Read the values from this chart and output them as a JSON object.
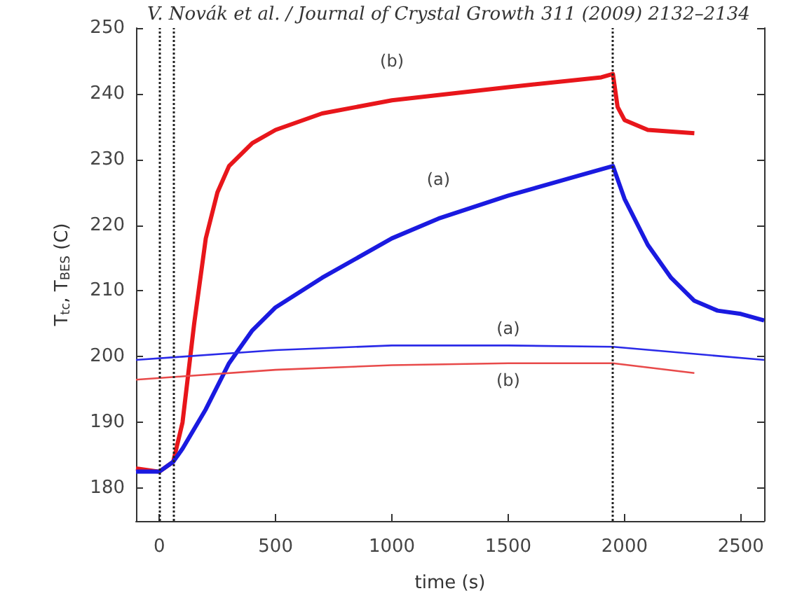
{
  "chart_data": {
    "type": "line",
    "xlabel": "time (s)",
    "ylabel": "T$_{tc}$, T$_{BES}$ (C)",
    "annotations": [
      "V. Novák et al. / Journal of Crystal Growth 311 (2009) 2132–2134"
    ],
    "series": [
      {
        "name": "(b)",
        "color": "#e8161b",
        "x": [
          -100,
          0,
          60,
          100,
          150,
          200,
          250,
          300,
          400,
          500,
          700,
          1000,
          1500,
          1900,
          1950,
          1970,
          2000,
          2100,
          2300
        ],
        "values": [
          183,
          182.5,
          184,
          190,
          205,
          218,
          225,
          229,
          232.5,
          234.5,
          237,
          239,
          241,
          242.5,
          243,
          238,
          236,
          234.5,
          234
        ]
      },
      {
        "name": "(a)",
        "color": "#1a1ae0",
        "x": [
          -100,
          0,
          60,
          100,
          200,
          300,
          400,
          500,
          700,
          1000,
          1200,
          1500,
          1800,
          1950,
          2000,
          2100,
          2200,
          2300,
          2400,
          2500,
          2600
        ],
        "values": [
          182.5,
          182.5,
          184,
          186,
          192,
          199,
          204,
          207.5,
          212,
          218,
          221,
          224.5,
          227.5,
          229,
          224,
          217,
          212,
          208.5,
          207,
          206.5,
          205.5
        ]
      },
      {
        "name": "(a)",
        "color": "#2a2ae8",
        "x": [
          -100,
          100,
          500,
          1000,
          1500,
          1950,
          2600
        ],
        "values": [
          199.5,
          200,
          201,
          201.7,
          201.7,
          201.5,
          199.5
        ]
      },
      {
        "name": "(b)",
        "color": "#e84a4a",
        "x": [
          -100,
          100,
          500,
          1000,
          1500,
          1950,
          2300
        ],
        "values": [
          196.5,
          197,
          198,
          198.7,
          199,
          199,
          197.5
        ]
      }
    ],
    "xlim": [
      -100,
      2600
    ],
    "xticks": [
      0,
      500,
      1000,
      1500,
      2000,
      2500
    ],
    "ylim": [
      175,
      250
    ],
    "yticks": [
      180,
      190,
      200,
      210,
      220,
      230,
      240,
      250
    ],
    "ref_lines": [
      {
        "axis": "x",
        "value": 0,
        "line_style": "dotted"
      },
      {
        "axis": "x",
        "value": 60,
        "line_style": "dotted"
      },
      {
        "axis": "x",
        "value": 1950,
        "line_style": "dotted"
      }
    ],
    "grid": false,
    "marker": "none",
    "line_style": "solid"
  }
}
